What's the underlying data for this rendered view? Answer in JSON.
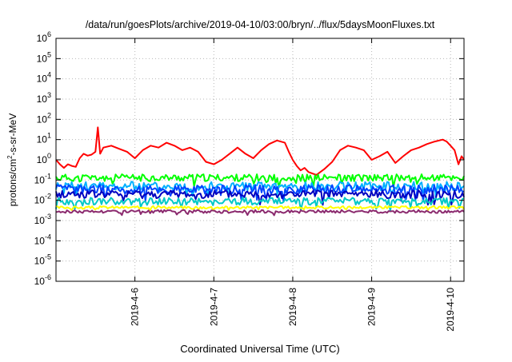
{
  "chart_data": {
    "type": "line",
    "title": "/data/run/goesPlots/archive/2019-04-10/03:00/bryn/../flux/5daysMoonFluxes.txt",
    "xlabel": "Coordinated Universal Time (UTC)",
    "ylabel": {
      "base": "protons/cm",
      "sup": "2",
      "rest": "-s-sr-MeV"
    },
    "y_scale": "log",
    "ylim_exp": [
      -6,
      6
    ],
    "y_tick_labels": [
      {
        "base": "10",
        "exp": "-6"
      },
      {
        "base": "10",
        "exp": "-5"
      },
      {
        "base": "10",
        "exp": "-4"
      },
      {
        "base": "10",
        "exp": "-3"
      },
      {
        "base": "10",
        "exp": "-2"
      },
      {
        "base": "10",
        "exp": "-1"
      },
      {
        "base": "10",
        "exp": "0"
      },
      {
        "base": "10",
        "exp": "1"
      },
      {
        "base": "10",
        "exp": "2"
      },
      {
        "base": "10",
        "exp": "3"
      },
      {
        "base": "10",
        "exp": "4"
      },
      {
        "base": "10",
        "exp": "5"
      },
      {
        "base": "10",
        "exp": "6"
      }
    ],
    "x_tick_labels": [
      "2019-4-6",
      "2019-4-7",
      "2019-4-8",
      "2019-4-9",
      "2019-4-10"
    ],
    "x_tick_days": [
      6,
      7,
      8,
      9,
      10
    ],
    "xlim_days": [
      5.0,
      10.17
    ],
    "grid": true,
    "legend": "none",
    "series": [
      {
        "color": "#ff0000",
        "points": [
          [
            5.0,
            1.0
          ],
          [
            5.05,
            0.6
          ],
          [
            5.1,
            0.4
          ],
          [
            5.15,
            0.6
          ],
          [
            5.2,
            0.5
          ],
          [
            5.25,
            0.45
          ],
          [
            5.3,
            1.2
          ],
          [
            5.35,
            2.0
          ],
          [
            5.4,
            1.6
          ],
          [
            5.45,
            1.8
          ],
          [
            5.5,
            2.5
          ],
          [
            5.53,
            40
          ],
          [
            5.56,
            2.0
          ],
          [
            5.6,
            4.0
          ],
          [
            5.7,
            5.0
          ],
          [
            5.8,
            3.5
          ],
          [
            5.9,
            2.5
          ],
          [
            6.0,
            1.2
          ],
          [
            6.1,
            3.0
          ],
          [
            6.2,
            5.0
          ],
          [
            6.3,
            4.0
          ],
          [
            6.4,
            7.0
          ],
          [
            6.5,
            5.0
          ],
          [
            6.6,
            3.0
          ],
          [
            6.7,
            4.0
          ],
          [
            6.8,
            2.5
          ],
          [
            6.9,
            0.8
          ],
          [
            7.0,
            0.6
          ],
          [
            7.1,
            1.0
          ],
          [
            7.2,
            2.0
          ],
          [
            7.3,
            4.0
          ],
          [
            7.4,
            2.0
          ],
          [
            7.5,
            1.2
          ],
          [
            7.6,
            3.0
          ],
          [
            7.7,
            6.0
          ],
          [
            7.8,
            9.0
          ],
          [
            7.9,
            7.0
          ],
          [
            7.95,
            2.5
          ],
          [
            8.0,
            1.0
          ],
          [
            8.05,
            0.5
          ],
          [
            8.1,
            0.3
          ],
          [
            8.15,
            0.4
          ],
          [
            8.2,
            0.25
          ],
          [
            8.3,
            0.18
          ],
          [
            8.4,
            0.35
          ],
          [
            8.5,
            0.8
          ],
          [
            8.6,
            3.0
          ],
          [
            8.7,
            5.0
          ],
          [
            8.8,
            4.0
          ],
          [
            8.9,
            3.0
          ],
          [
            9.0,
            1.0
          ],
          [
            9.1,
            1.5
          ],
          [
            9.2,
            2.5
          ],
          [
            9.3,
            0.7
          ],
          [
            9.4,
            1.5
          ],
          [
            9.5,
            3.0
          ],
          [
            9.6,
            4.0
          ],
          [
            9.7,
            6.0
          ],
          [
            9.8,
            8.0
          ],
          [
            9.9,
            10.0
          ],
          [
            9.95,
            8.0
          ],
          [
            10.0,
            5.0
          ],
          [
            10.05,
            3.0
          ],
          [
            10.1,
            0.6
          ],
          [
            10.14,
            1.5
          ],
          [
            10.17,
            1.0
          ]
        ]
      },
      {
        "color": "#00ff00",
        "level": 0.13,
        "amp": 0.7,
        "seed": 11
      },
      {
        "color": "#00b0ff",
        "level": 0.05,
        "amp": 0.9,
        "seed": 23
      },
      {
        "color": "#0044ff",
        "level": 0.035,
        "amp": 0.9,
        "seed": 37
      },
      {
        "color": "#0000c0",
        "level": 0.02,
        "amp": 0.8,
        "seed": 41
      },
      {
        "color": "#00c8c8",
        "level": 0.009,
        "amp": 0.7,
        "seed": 53
      },
      {
        "color": "#ffff00",
        "level": 0.0045,
        "amp": 0.25,
        "seed": 67
      },
      {
        "color": "#8b2a6e",
        "level": 0.0028,
        "amp": 0.3,
        "seed": 79
      }
    ]
  }
}
